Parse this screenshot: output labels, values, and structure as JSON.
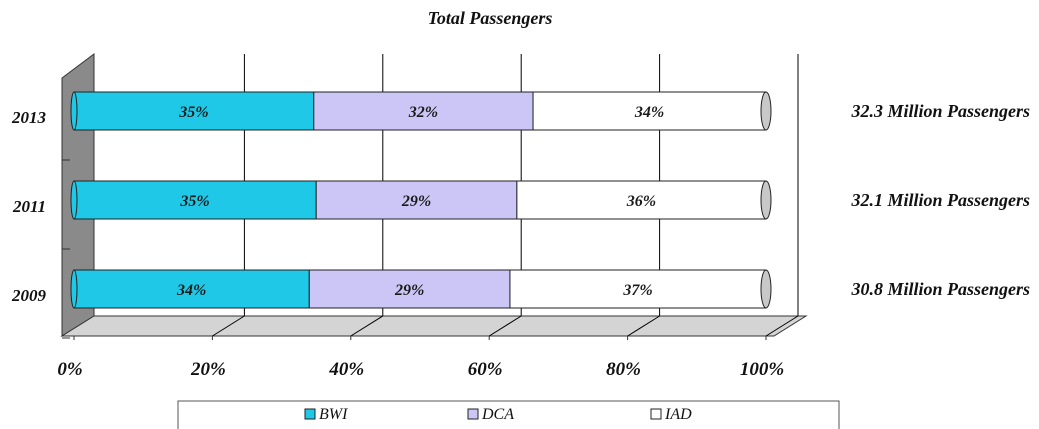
{
  "chart_data": {
    "type": "bar",
    "orientation": "horizontal",
    "stacked": "percent",
    "title": "Total Passengers",
    "categories": [
      "2013",
      "2011",
      "2009"
    ],
    "series": [
      {
        "name": "BWI",
        "values": [
          35,
          35,
          34
        ],
        "labels": [
          "35%",
          "35%",
          "34%"
        ],
        "color": "#1fc8e6"
      },
      {
        "name": "DCA",
        "values": [
          32,
          29,
          29
        ],
        "labels": [
          "32%",
          "29%",
          "29%"
        ],
        "color": "#cbc6f5"
      },
      {
        "name": "IAD",
        "values": [
          34,
          36,
          37
        ],
        "labels": [
          "34%",
          "36%",
          "37%"
        ],
        "color": "#ffffff"
      }
    ],
    "annotations": [
      "32.3 Million Passengers",
      "32.1 Million Passengers",
      "30.8 Million Passengers"
    ],
    "xticks": [
      "0%",
      "20%",
      "40%",
      "60%",
      "80%",
      "100%"
    ],
    "xlim": [
      0,
      100
    ],
    "grid": true,
    "legend_position": "bottom",
    "colors": {
      "wall": "#8a8a8a",
      "floor": "#d4d4d4",
      "gridline": "#000000"
    }
  }
}
